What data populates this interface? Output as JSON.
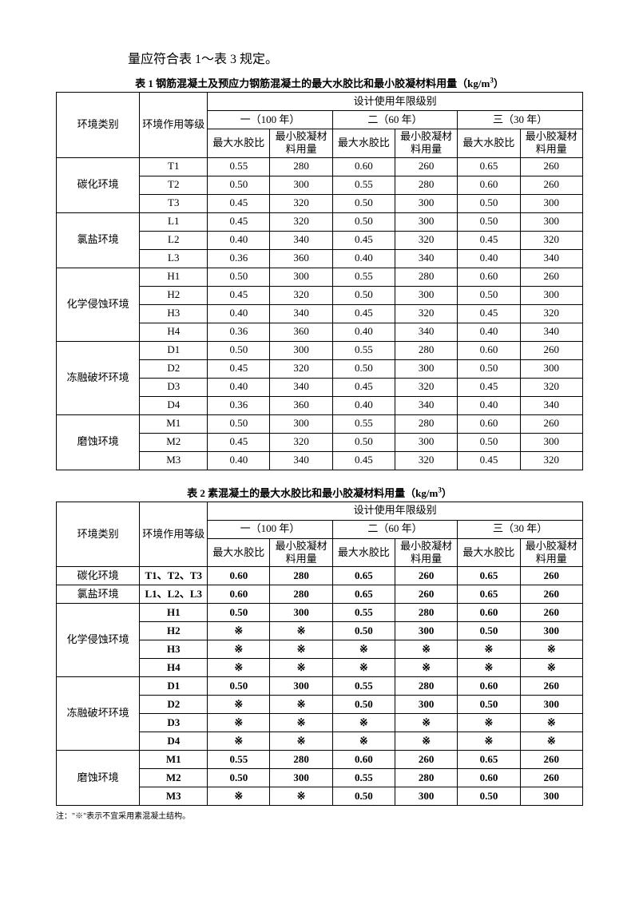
{
  "intro": "量应符合表 1～表 3 规定。",
  "table1": {
    "title_prefix": "表 1   钢筋混凝土及预应力钢筋混凝土的最大水胶比和最小胶凝材料用量（kg/m",
    "title_sup": "3",
    "title_suffix": "）",
    "header": {
      "env": "环境类别",
      "grade": "环境作用等级",
      "design": "设计使用年限级别",
      "periods": [
        "一（100 年）",
        "二（60 年）",
        "三（30 年）"
      ],
      "sub1": "最大水胶比",
      "sub2": "最小胶凝材料用量"
    },
    "groups": [
      {
        "env": "碳化环境",
        "rows": [
          {
            "g": "T1",
            "v": [
              "0.55",
              "280",
              "0.60",
              "260",
              "0.65",
              "260"
            ]
          },
          {
            "g": "T2",
            "v": [
              "0.50",
              "300",
              "0.55",
              "280",
              "0.60",
              "260"
            ]
          },
          {
            "g": "T3",
            "v": [
              "0.45",
              "320",
              "0.50",
              "300",
              "0.50",
              "300"
            ]
          }
        ]
      },
      {
        "env": "氯盐环境",
        "rows": [
          {
            "g": "L1",
            "v": [
              "0.45",
              "320",
              "0.50",
              "300",
              "0.50",
              "300"
            ]
          },
          {
            "g": "L2",
            "v": [
              "0.40",
              "340",
              "0.45",
              "320",
              "0.45",
              "320"
            ]
          },
          {
            "g": "L3",
            "v": [
              "0.36",
              "360",
              "0.40",
              "340",
              "0.40",
              "340"
            ]
          }
        ]
      },
      {
        "env": "化学侵蚀环境",
        "rows": [
          {
            "g": "H1",
            "v": [
              "0.50",
              "300",
              "0.55",
              "280",
              "0.60",
              "260"
            ]
          },
          {
            "g": "H2",
            "v": [
              "0.45",
              "320",
              "0.50",
              "300",
              "0.50",
              "300"
            ]
          },
          {
            "g": "H3",
            "v": [
              "0.40",
              "340",
              "0.45",
              "320",
              "0.45",
              "320"
            ]
          },
          {
            "g": "H4",
            "v": [
              "0.36",
              "360",
              "0.40",
              "340",
              "0.40",
              "340"
            ]
          }
        ]
      },
      {
        "env": "冻融破坏环境",
        "rows": [
          {
            "g": "D1",
            "v": [
              "0.50",
              "300",
              "0.55",
              "280",
              "0.60",
              "260"
            ]
          },
          {
            "g": "D2",
            "v": [
              "0.45",
              "320",
              "0.50",
              "300",
              "0.50",
              "300"
            ]
          },
          {
            "g": "D3",
            "v": [
              "0.40",
              "340",
              "0.45",
              "320",
              "0.45",
              "320"
            ]
          },
          {
            "g": "D4",
            "v": [
              "0.36",
              "360",
              "0.40",
              "340",
              "0.40",
              "340"
            ]
          }
        ]
      },
      {
        "env": "磨蚀环境",
        "rows": [
          {
            "g": "M1",
            "v": [
              "0.50",
              "300",
              "0.55",
              "280",
              "0.60",
              "260"
            ]
          },
          {
            "g": "M2",
            "v": [
              "0.45",
              "320",
              "0.50",
              "300",
              "0.50",
              "300"
            ]
          },
          {
            "g": "M3",
            "v": [
              "0.40",
              "340",
              "0.45",
              "320",
              "0.45",
              "320"
            ]
          }
        ]
      }
    ]
  },
  "table2": {
    "title_prefix": "表 2   素混凝土的最大水胶比和最小胶凝材料用量（kg/m",
    "title_sup": "3",
    "title_suffix": "）",
    "header": {
      "env": "环境类别",
      "grade": "环境作用等级",
      "design": "设计使用年限级别",
      "periods": [
        "一（100 年）",
        "二（60 年）",
        "三（30 年）"
      ],
      "sub1": "最大水胶比",
      "sub2": "最小胶凝材料用量"
    },
    "groups": [
      {
        "env": "碳化环境",
        "rows": [
          {
            "g": "T1、T2、T3",
            "v": [
              "0.60",
              "280",
              "0.65",
              "260",
              "0.65",
              "260"
            ],
            "bold": true
          }
        ]
      },
      {
        "env": "氯盐环境",
        "rows": [
          {
            "g": "L1、L2、L3",
            "v": [
              "0.60",
              "280",
              "0.65",
              "260",
              "0.65",
              "260"
            ],
            "bold": true
          }
        ]
      },
      {
        "env": "化学侵蚀环境",
        "rows": [
          {
            "g": "H1",
            "v": [
              "0.50",
              "300",
              "0.55",
              "280",
              "0.60",
              "260"
            ],
            "bold": true
          },
          {
            "g": "H2",
            "v": [
              "※",
              "※",
              "0.50",
              "300",
              "0.50",
              "300"
            ],
            "bold": true
          },
          {
            "g": "H3",
            "v": [
              "※",
              "※",
              "※",
              "※",
              "※",
              "※"
            ],
            "bold": true
          },
          {
            "g": "H4",
            "v": [
              "※",
              "※",
              "※",
              "※",
              "※",
              "※"
            ],
            "bold": true
          }
        ]
      },
      {
        "env": "冻融破坏环境",
        "rows": [
          {
            "g": "D1",
            "v": [
              "0.50",
              "300",
              "0.55",
              "280",
              "0.60",
              "260"
            ],
            "bold": true
          },
          {
            "g": "D2",
            "v": [
              "※",
              "※",
              "0.50",
              "300",
              "0.50",
              "300"
            ],
            "bold": true
          },
          {
            "g": "D3",
            "v": [
              "※",
              "※",
              "※",
              "※",
              "※",
              "※"
            ],
            "bold": true
          },
          {
            "g": "D4",
            "v": [
              "※",
              "※",
              "※",
              "※",
              "※",
              "※"
            ],
            "bold": true
          }
        ]
      },
      {
        "env": "磨蚀环境",
        "rows": [
          {
            "g": "M1",
            "v": [
              "0.55",
              "280",
              "0.60",
              "260",
              "0.65",
              "260"
            ],
            "bold": true
          },
          {
            "g": "M2",
            "v": [
              "0.50",
              "300",
              "0.55",
              "280",
              "0.60",
              "260"
            ],
            "bold": true
          },
          {
            "g": "M3",
            "v": [
              "※",
              "※",
              "0.50",
              "300",
              "0.50",
              "300"
            ],
            "bold": true
          }
        ]
      }
    ]
  },
  "footnote": "注：\"※\"表示不宜采用素混凝土结构。"
}
